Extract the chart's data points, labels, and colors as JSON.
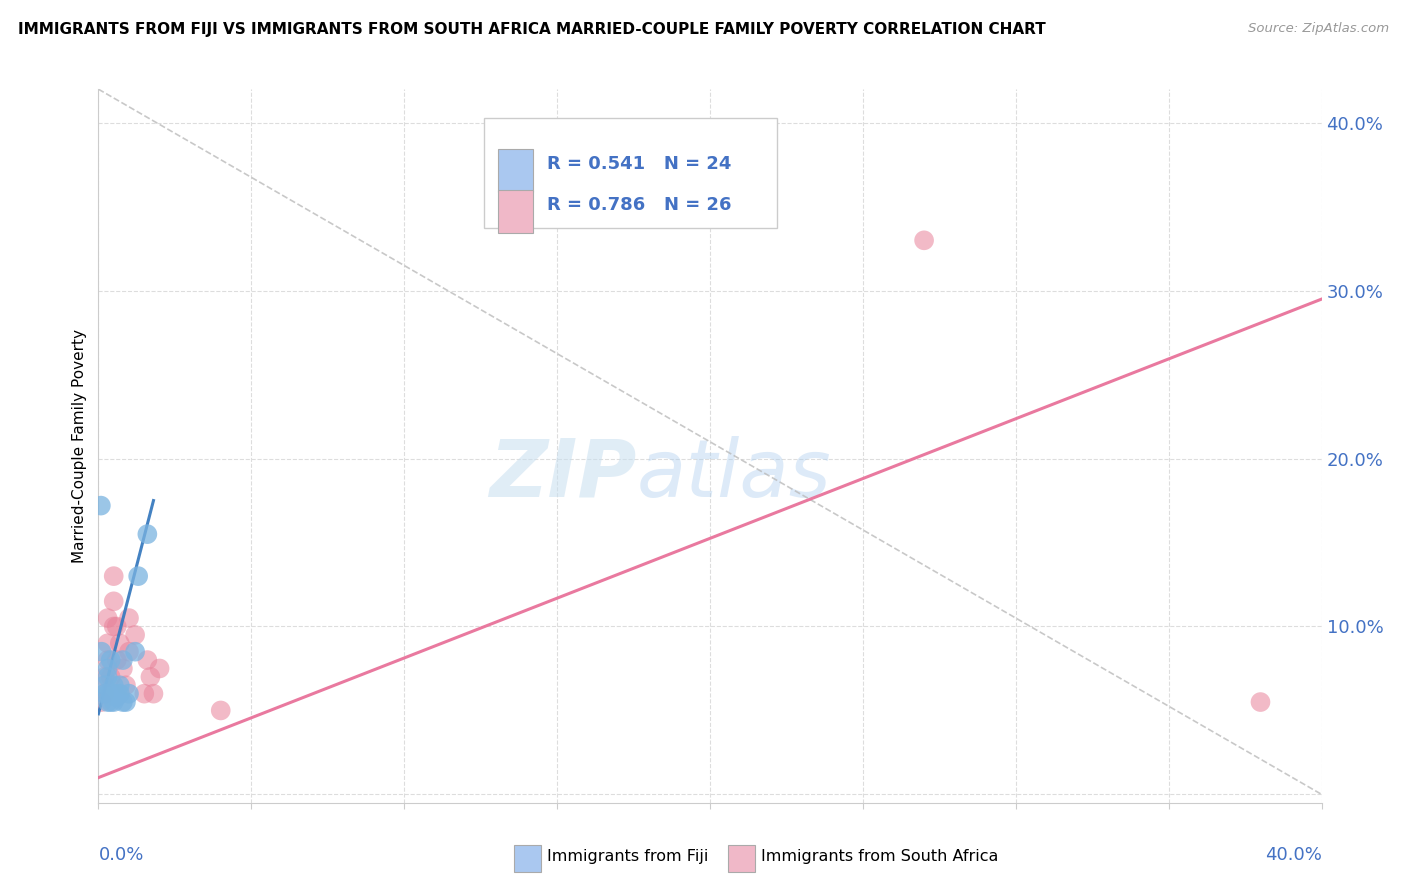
{
  "title": "IMMIGRANTS FROM FIJI VS IMMIGRANTS FROM SOUTH AFRICA MARRIED-COUPLE FAMILY POVERTY CORRELATION CHART",
  "source": "Source: ZipAtlas.com",
  "ylabel": "Married-Couple Family Poverty",
  "legend_label_fiji": "Immigrants from Fiji",
  "legend_label_sa": "Immigrants from South Africa",
  "watermark_zip": "ZIP",
  "watermark_atlas": "atlas",
  "fiji_R": "0.541",
  "fiji_N": "24",
  "sa_R": "0.786",
  "sa_N": "26",
  "xmin": 0.0,
  "xmax": 0.4,
  "ymin": -0.005,
  "ymax": 0.42,
  "fiji_dot_color": "#7ab3e0",
  "fiji_dot_alpha": 0.75,
  "sa_dot_color": "#e8829a",
  "sa_dot_alpha": 0.55,
  "fiji_line_color": "#3a7bbf",
  "sa_line_color": "#e8729a",
  "ref_line_color": "#bbbbbb",
  "legend_fill_fiji": "#aac8f0",
  "legend_fill_sa": "#f0b8c8",
  "axis_label_color": "#4472C4",
  "grid_color": "#dddddd",
  "fiji_points": [
    [
      0.0008,
      0.172
    ],
    [
      0.001,
      0.085
    ],
    [
      0.002,
      0.06
    ],
    [
      0.002,
      0.065
    ],
    [
      0.003,
      0.055
    ],
    [
      0.003,
      0.06
    ],
    [
      0.003,
      0.07
    ],
    [
      0.003,
      0.075
    ],
    [
      0.004,
      0.055
    ],
    [
      0.004,
      0.06
    ],
    [
      0.004,
      0.08
    ],
    [
      0.005,
      0.055
    ],
    [
      0.005,
      0.06
    ],
    [
      0.005,
      0.065
    ],
    [
      0.006,
      0.058
    ],
    [
      0.007,
      0.06
    ],
    [
      0.007,
      0.065
    ],
    [
      0.008,
      0.055
    ],
    [
      0.008,
      0.08
    ],
    [
      0.009,
      0.055
    ],
    [
      0.01,
      0.06
    ],
    [
      0.012,
      0.085
    ],
    [
      0.013,
      0.13
    ],
    [
      0.016,
      0.155
    ]
  ],
  "sa_points": [
    [
      0.001,
      0.055
    ],
    [
      0.002,
      0.06
    ],
    [
      0.002,
      0.07
    ],
    [
      0.003,
      0.08
    ],
    [
      0.003,
      0.09
    ],
    [
      0.003,
      0.105
    ],
    [
      0.004,
      0.07
    ],
    [
      0.005,
      0.1
    ],
    [
      0.005,
      0.115
    ],
    [
      0.005,
      0.13
    ],
    [
      0.006,
      0.08
    ],
    [
      0.006,
      0.1
    ],
    [
      0.007,
      0.09
    ],
    [
      0.008,
      0.075
    ],
    [
      0.009,
      0.065
    ],
    [
      0.01,
      0.085
    ],
    [
      0.01,
      0.105
    ],
    [
      0.012,
      0.095
    ],
    [
      0.015,
      0.06
    ],
    [
      0.016,
      0.08
    ],
    [
      0.017,
      0.07
    ],
    [
      0.018,
      0.06
    ],
    [
      0.02,
      0.075
    ],
    [
      0.04,
      0.05
    ],
    [
      0.27,
      0.33
    ],
    [
      0.38,
      0.055
    ]
  ],
  "fiji_trend_x": [
    0.0,
    0.018
  ],
  "fiji_trend_y": [
    0.048,
    0.175
  ],
  "sa_trend_x": [
    0.0,
    0.4
  ],
  "sa_trend_y": [
    0.01,
    0.295
  ],
  "ref_trend_x": [
    0.0,
    0.4
  ],
  "ref_trend_y": [
    0.42,
    0.0
  ],
  "xticks": [
    0.0,
    0.05,
    0.1,
    0.15,
    0.2,
    0.25,
    0.3,
    0.35,
    0.4
  ],
  "yticks_right": [
    0.0,
    0.1,
    0.2,
    0.3,
    0.4
  ],
  "ytick_labels": [
    "",
    "10.0%",
    "20.0%",
    "30.0%",
    "40.0%"
  ]
}
